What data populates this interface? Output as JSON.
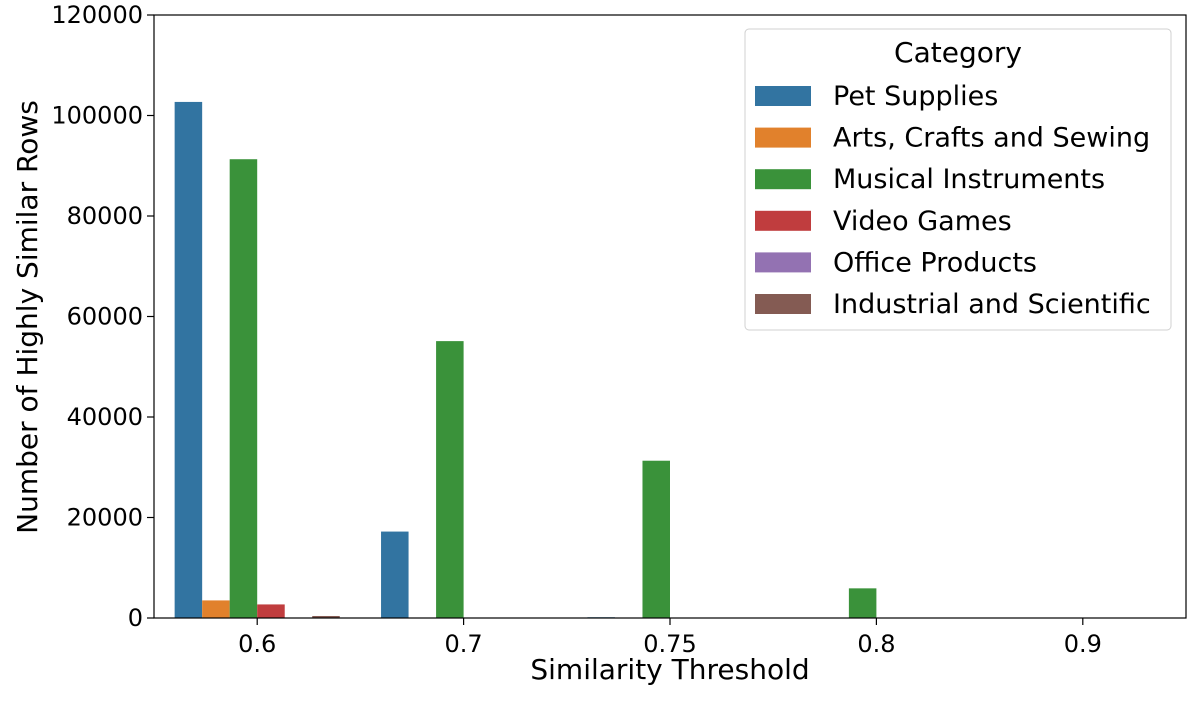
{
  "chart_data": {
    "type": "bar",
    "title": "",
    "xlabel": "Similarity Threshold",
    "ylabel": "Number of Highly Similar Rows",
    "categories": [
      "0.6",
      "0.7",
      "0.75",
      "0.8",
      "0.9"
    ],
    "ylim": [
      0,
      120000
    ],
    "yticks": [
      "0",
      "20000",
      "40000",
      "60000",
      "80000",
      "100000",
      "120000"
    ],
    "grid": false,
    "legend": {
      "title": "Category",
      "position": "top-right"
    },
    "series": [
      {
        "name": "Pet Supplies",
        "color": "#3274a1",
        "values": [
          102700,
          17200,
          150,
          0,
          0
        ]
      },
      {
        "name": "Arts, Crafts and Sewing",
        "color": "#e1812c",
        "values": [
          3500,
          0,
          0,
          0,
          0
        ]
      },
      {
        "name": "Musical Instruments",
        "color": "#3a923a",
        "values": [
          91300,
          55100,
          31300,
          5900,
          0
        ]
      },
      {
        "name": "Video Games",
        "color": "#c03d3e",
        "values": [
          2700,
          0,
          0,
          0,
          0
        ]
      },
      {
        "name": "Office Products",
        "color": "#9372b2",
        "values": [
          0,
          0,
          0,
          0,
          0
        ]
      },
      {
        "name": "Industrial and Scientific",
        "color": "#845b53",
        "values": [
          400,
          0,
          0,
          0,
          0
        ]
      }
    ]
  }
}
